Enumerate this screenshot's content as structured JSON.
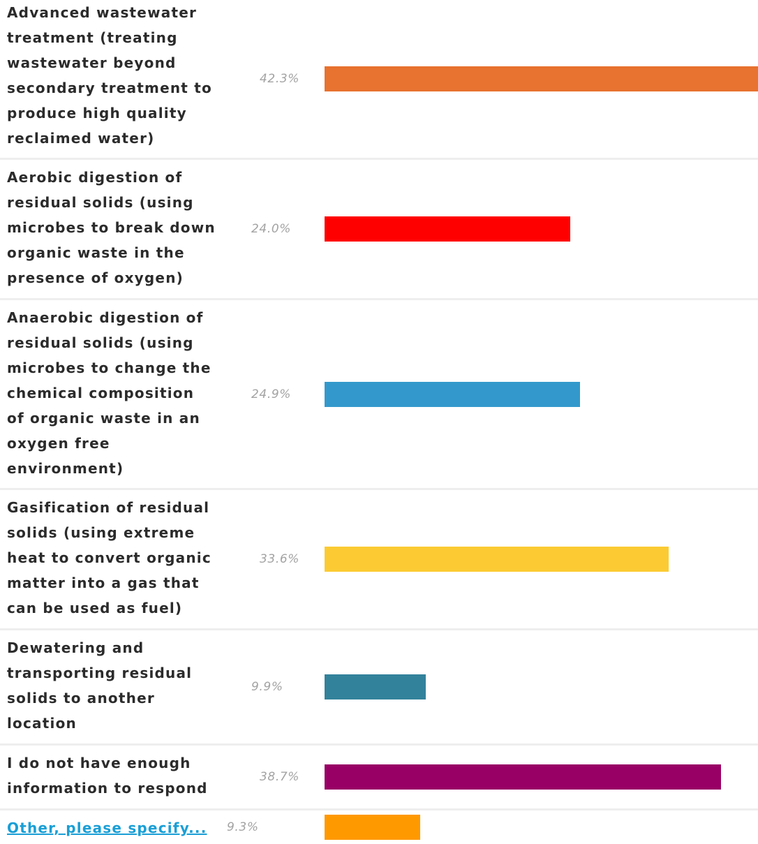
{
  "chart_data": {
    "type": "bar",
    "orientation": "horizontal",
    "categories": [
      "Advanced wastewater treatment (treating wastewater beyond secondary treatment to produce high quality reclaimed water)",
      "Aerobic digestion of residual solids (using microbes to break down organic waste in the presence of oxygen)",
      "Anaerobic digestion of residual solids (using microbes to change the chemical composition of organic waste in an oxygen free environment)",
      "Gasification of residual solids (using extreme heat to convert organic matter into a gas that can be used as fuel)",
      "Dewatering and transporting residual solids to another location",
      "I do not have enough information to respond",
      "Other, please specify..."
    ],
    "values": [
      42.3,
      24.0,
      24.9,
      33.6,
      9.9,
      38.7,
      9.3
    ],
    "value_labels": [
      "42.3%",
      "24.0%",
      "24.9%",
      "33.6%",
      "9.9%",
      "38.7%",
      "9.3%"
    ],
    "colors": [
      "#e8722f",
      "#ff0000",
      "#3399cc",
      "#fccb33",
      "#33829b",
      "#990066",
      "#ff9900"
    ],
    "xlim": [
      0,
      42.3
    ],
    "grid": false,
    "legend": "none"
  }
}
